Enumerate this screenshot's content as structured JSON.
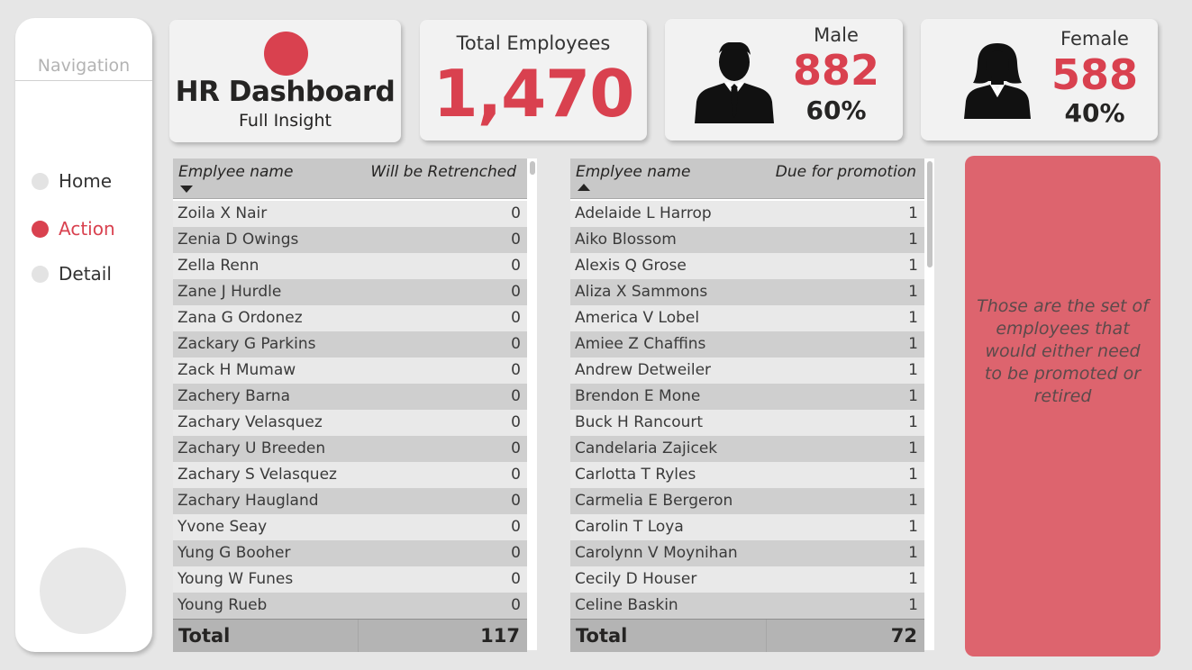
{
  "navigation": {
    "title": "Navigation",
    "items": [
      {
        "label": "Home",
        "active": false
      },
      {
        "label": "Action",
        "active": true
      },
      {
        "label": "Detail",
        "active": false
      }
    ]
  },
  "title_card": {
    "title": "HR Dashboard",
    "subtitle": "Full Insight"
  },
  "total_card": {
    "label": "Total Employees",
    "value": "1,470"
  },
  "male_card": {
    "label": "Male",
    "value": "882",
    "percent": "60%",
    "icon": "male-person-icon"
  },
  "female_card": {
    "label": "Female",
    "value": "588",
    "percent": "40%",
    "icon": "female-person-icon"
  },
  "retrench_table": {
    "col_name": "Emplyee name",
    "col_value": "Will be Retrenched",
    "sort": "descending",
    "rows": [
      {
        "name": "Zoila X Nair",
        "value": "0"
      },
      {
        "name": "Zenia D Owings",
        "value": "0"
      },
      {
        "name": "Zella Renn",
        "value": "0"
      },
      {
        "name": "Zane J Hurdle",
        "value": "0"
      },
      {
        "name": "Zana G Ordonez",
        "value": "0"
      },
      {
        "name": "Zackary G Parkins",
        "value": "0"
      },
      {
        "name": "Zack H Mumaw",
        "value": "0"
      },
      {
        "name": "Zachery Barna",
        "value": "0"
      },
      {
        "name": "Zachary Velasquez",
        "value": "0"
      },
      {
        "name": "Zachary U Breeden",
        "value": "0"
      },
      {
        "name": "Zachary S Velasquez",
        "value": "0"
      },
      {
        "name": "Zachary Haugland",
        "value": "0"
      },
      {
        "name": "Yvone Seay",
        "value": "0"
      },
      {
        "name": "Yung G Booher",
        "value": "0"
      },
      {
        "name": "Young W Funes",
        "value": "0"
      },
      {
        "name": "Young Rueb",
        "value": "0"
      }
    ],
    "total_label": "Total",
    "total_value": "117"
  },
  "promotion_table": {
    "col_name": "Emplyee name",
    "col_value": "Due for promotion",
    "sort": "ascending",
    "rows": [
      {
        "name": "Adelaide L Harrop",
        "value": "1"
      },
      {
        "name": "Aiko Blossom",
        "value": "1"
      },
      {
        "name": "Alexis Q Grose",
        "value": "1"
      },
      {
        "name": "Aliza X Sammons",
        "value": "1"
      },
      {
        "name": "America V Lobel",
        "value": "1"
      },
      {
        "name": "Amiee Z Chaffins",
        "value": "1"
      },
      {
        "name": "Andrew Detweiler",
        "value": "1"
      },
      {
        "name": "Brendon E Mone",
        "value": "1"
      },
      {
        "name": "Buck H Rancourt",
        "value": "1"
      },
      {
        "name": "Candelaria Zajicek",
        "value": "1"
      },
      {
        "name": "Carlotta T Ryles",
        "value": "1"
      },
      {
        "name": "Carmelia E Bergeron",
        "value": "1"
      },
      {
        "name": "Carolin T Loya",
        "value": "1"
      },
      {
        "name": "Carolynn V Moynihan",
        "value": "1"
      },
      {
        "name": "Cecily D Houser",
        "value": "1"
      },
      {
        "name": "Celine Baskin",
        "value": "1"
      }
    ],
    "total_label": "Total",
    "total_value": "72"
  },
  "note": {
    "text": "Those are the set of employees that would either need to be promoted or retired"
  },
  "colors": {
    "accent": "#d9414f",
    "note_bg": "#dd646e",
    "background": "#e6e6e6"
  }
}
